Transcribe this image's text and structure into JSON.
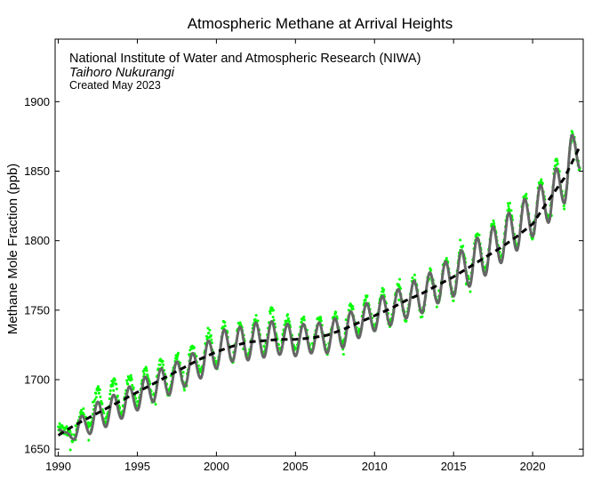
{
  "chart_data": {
    "type": "line",
    "title": "Atmospheric Methane at Arrival Heights",
    "annotations": [
      {
        "text": "National Institute of Water and Atmospheric Research (NIWA)",
        "style": "normal"
      },
      {
        "text": "Taihoro Nukurangi",
        "style": "italic"
      },
      {
        "text": "Created May 2023",
        "style": "small"
      }
    ],
    "xlabel": "",
    "ylabel": "Methane Mole Fraction (ppb)",
    "xlim": [
      1989.8,
      2023.2
    ],
    "ylim": [
      1645,
      1945
    ],
    "xticks": [
      1990,
      1995,
      2000,
      2005,
      2010,
      2015,
      2020
    ],
    "yticks": [
      1650,
      1700,
      1750,
      1800,
      1850,
      1900
    ],
    "grid": false,
    "series": [
      {
        "role": "observations",
        "style": "points",
        "color": "#00ff00",
        "x": [
          1990.0,
          1990.5,
          1991.0,
          1991.5,
          1992.0,
          1992.5,
          1993.0,
          1993.5,
          1994.0,
          1994.5,
          1995.0,
          1995.5,
          1996.0,
          1996.5,
          1997.0,
          1997.5,
          1998.0,
          1998.5,
          1999.0,
          1999.5,
          2000.0,
          2000.5,
          2001.0,
          2001.5,
          2002.0,
          2002.5,
          2003.0,
          2003.5,
          2004.0,
          2004.5,
          2005.0,
          2005.5,
          2006.0,
          2006.5,
          2007.0,
          2007.5,
          2008.0,
          2008.5,
          2009.0,
          2009.5,
          2010.0,
          2010.5,
          2011.0,
          2011.5,
          2012.0,
          2012.5,
          2013.0,
          2013.5,
          2014.0,
          2014.5,
          2015.0,
          2015.5,
          2016.0,
          2016.5,
          2017.0,
          2017.5,
          2018.0,
          2018.5,
          2019.0,
          2019.5,
          2020.0,
          2020.5,
          2021.0,
          2021.5,
          2022.0,
          2022.5,
          2023.0
        ],
        "y": [
          1665,
          1663,
          1657,
          1677,
          1666,
          1693,
          1670,
          1700,
          1676,
          1703,
          1681,
          1708,
          1686,
          1713,
          1690,
          1718,
          1695,
          1723,
          1704,
          1734,
          1710,
          1740,
          1715,
          1740,
          1716,
          1744,
          1718,
          1750,
          1722,
          1744,
          1720,
          1742,
          1722,
          1743,
          1720,
          1746,
          1725,
          1752,
          1733,
          1758,
          1738,
          1763,
          1741,
          1767,
          1745,
          1773,
          1747,
          1777,
          1755,
          1788,
          1760,
          1795,
          1770,
          1805,
          1778,
          1812,
          1787,
          1825,
          1795,
          1833,
          1803,
          1843,
          1815,
          1856,
          1828,
          1876,
          1852
        ]
      },
      {
        "role": "seasonal fit",
        "style": "line",
        "color": "#666666",
        "x": [
          1990.0,
          1990.5,
          1991.0,
          1991.5,
          1992.0,
          1992.5,
          1993.0,
          1993.5,
          1994.0,
          1994.5,
          1995.0,
          1995.5,
          1996.0,
          1996.5,
          1997.0,
          1997.5,
          1998.0,
          1998.5,
          1999.0,
          1999.5,
          2000.0,
          2000.5,
          2001.0,
          2001.5,
          2002.0,
          2002.5,
          2003.0,
          2003.5,
          2004.0,
          2004.5,
          2005.0,
          2005.5,
          2006.0,
          2006.5,
          2007.0,
          2007.5,
          2008.0,
          2008.5,
          2009.0,
          2009.5,
          2010.0,
          2010.5,
          2011.0,
          2011.5,
          2012.0,
          2012.5,
          2013.0,
          2013.5,
          2014.0,
          2014.5,
          2015.0,
          2015.5,
          2016.0,
          2016.5,
          2017.0,
          2017.5,
          2018.0,
          2018.5,
          2019.0,
          2019.5,
          2020.0,
          2020.5,
          2021.0,
          2021.5,
          2022.0,
          2022.5,
          2023.0
        ],
        "y": [
          1664,
          1662,
          1657,
          1674,
          1661,
          1684,
          1666,
          1689,
          1672,
          1695,
          1678,
          1702,
          1684,
          1708,
          1689,
          1713,
          1695,
          1719,
          1701,
          1728,
          1708,
          1736,
          1713,
          1738,
          1714,
          1741,
          1716,
          1742,
          1718,
          1740,
          1717,
          1740,
          1719,
          1741,
          1719,
          1744,
          1723,
          1749,
          1730,
          1755,
          1735,
          1760,
          1739,
          1765,
          1744,
          1771,
          1748,
          1777,
          1755,
          1785,
          1760,
          1793,
          1767,
          1802,
          1775,
          1810,
          1784,
          1820,
          1793,
          1830,
          1803,
          1840,
          1813,
          1852,
          1827,
          1876,
          1852
        ]
      },
      {
        "role": "trend",
        "style": "dashed",
        "color": "#000000",
        "x": [
          1990.0,
          1991.0,
          1992.0,
          1993.0,
          1994.0,
          1995.0,
          1996.0,
          1997.0,
          1998.0,
          1999.0,
          2000.0,
          2001.0,
          2002.0,
          2003.0,
          2004.0,
          2005.0,
          2006.0,
          2007.0,
          2008.0,
          2009.0,
          2010.0,
          2011.0,
          2012.0,
          2013.0,
          2014.0,
          2015.0,
          2016.0,
          2017.0,
          2018.0,
          2019.0,
          2020.0,
          2021.0,
          2022.0,
          2023.0
        ],
        "y": [
          1660,
          1667,
          1673,
          1679,
          1685,
          1691,
          1697,
          1703,
          1709,
          1715,
          1720,
          1724,
          1727,
          1728,
          1729,
          1729,
          1730,
          1732,
          1736,
          1741,
          1746,
          1751,
          1757,
          1762,
          1768,
          1774,
          1781,
          1788,
          1795,
          1803,
          1812,
          1829,
          1845,
          1868
        ]
      }
    ]
  }
}
